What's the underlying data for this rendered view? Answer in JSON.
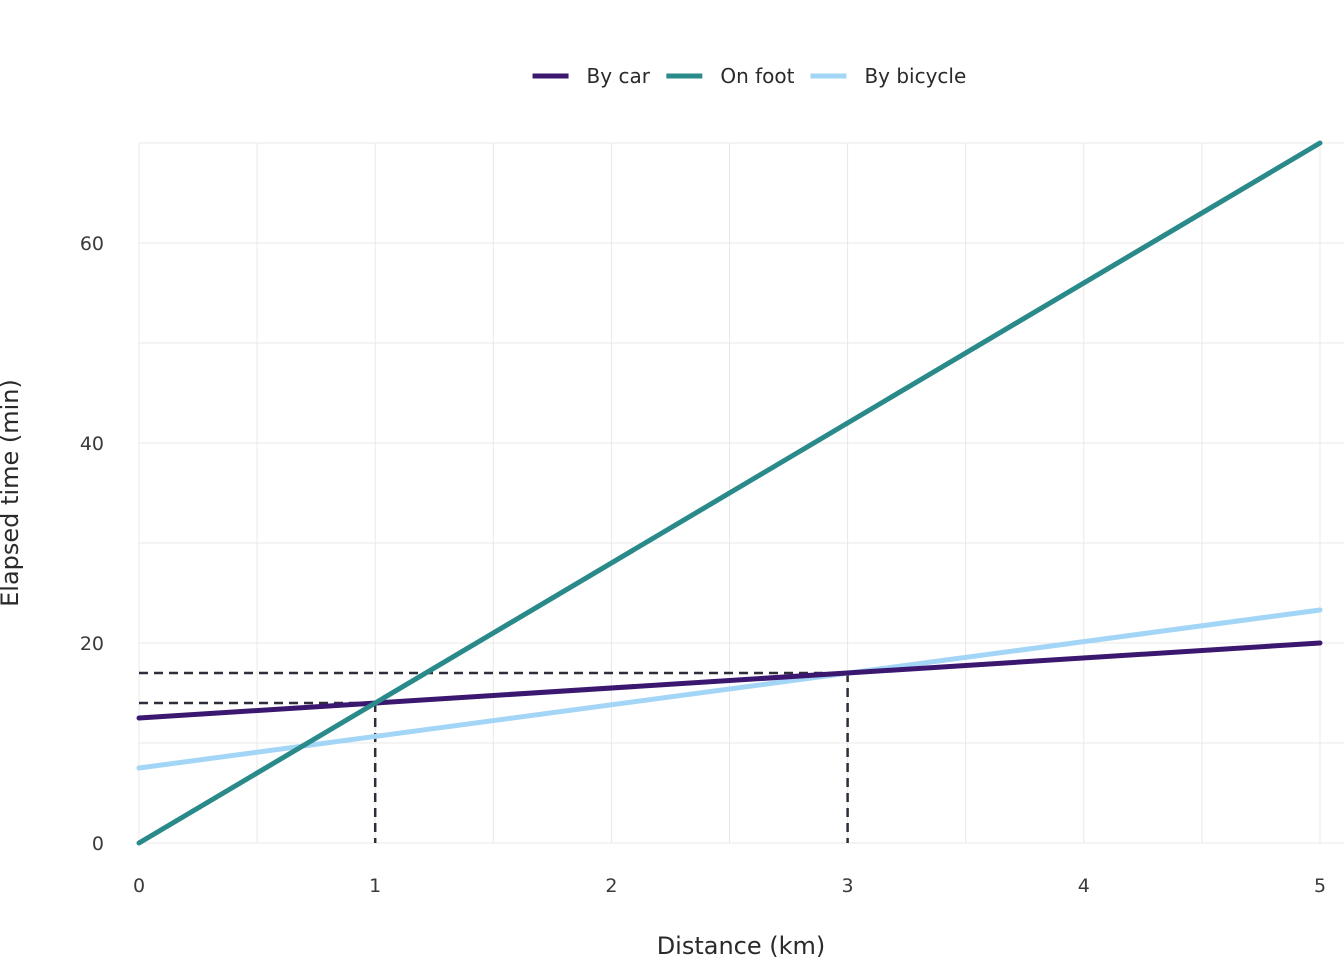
{
  "chart_data": {
    "type": "line",
    "title": "",
    "xlabel": "Distance (km)",
    "ylabel": "Elapsed time (min)",
    "xlim": [
      0,
      5
    ],
    "ylim": [
      0,
      70
    ],
    "x_ticks": [
      0,
      1,
      2,
      3,
      4,
      5
    ],
    "y_ticks": [
      0,
      20,
      40,
      60
    ],
    "grid": true,
    "legend_position": "top-center",
    "series": [
      {
        "name": "By car",
        "color": "#3b176f",
        "x": [
          0,
          5
        ],
        "y": [
          12.5,
          20
        ]
      },
      {
        "name": "On foot",
        "color": "#2a8a8a",
        "x": [
          0,
          5
        ],
        "y": [
          0,
          70
        ]
      },
      {
        "name": "By bicycle",
        "color": "#a3d5f6",
        "x": [
          0,
          5
        ],
        "y": [
          7.5,
          23.3
        ]
      }
    ],
    "annotations": [
      {
        "type": "reference-dashed",
        "x": 1,
        "y": 14,
        "color": "#2e2e3a"
      },
      {
        "type": "reference-dashed",
        "x": 3,
        "y": 17,
        "color": "#2e2e3a"
      }
    ]
  }
}
